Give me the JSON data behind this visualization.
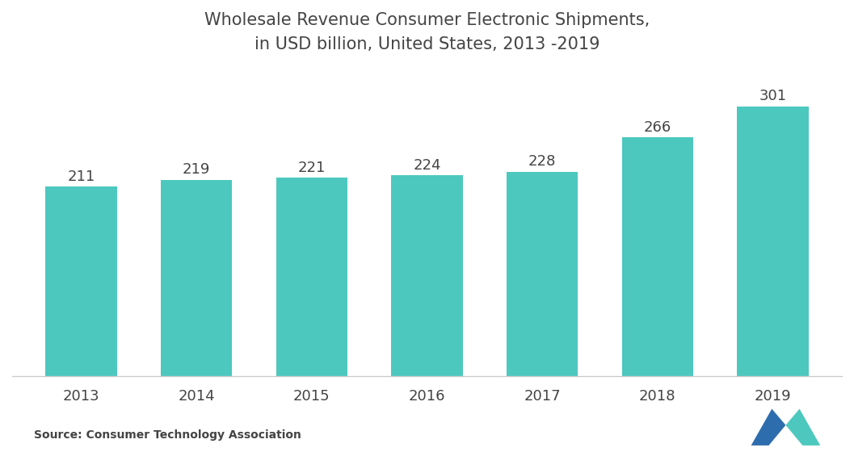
{
  "title_line1": "Wholesale Revenue Consumer Electronic Shipments,",
  "title_line2": "in USD billion, United States, 2013 -2019",
  "categories": [
    "2013",
    "2014",
    "2015",
    "2016",
    "2017",
    "2018",
    "2019"
  ],
  "values": [
    211,
    219,
    221,
    224,
    228,
    266,
    301
  ],
  "bar_color": "#4DC8BE",
  "background_color": "#ffffff",
  "label_color": "#444444",
  "source_text": "Source: Consumer Technology Association",
  "title_fontsize": 15,
  "label_fontsize": 13,
  "tick_fontsize": 13,
  "source_fontsize": 10,
  "ylim_min": 0,
  "ylim_max": 340,
  "logo_left_color": "#2E6DAD",
  "logo_right_color": "#4DC8BE"
}
